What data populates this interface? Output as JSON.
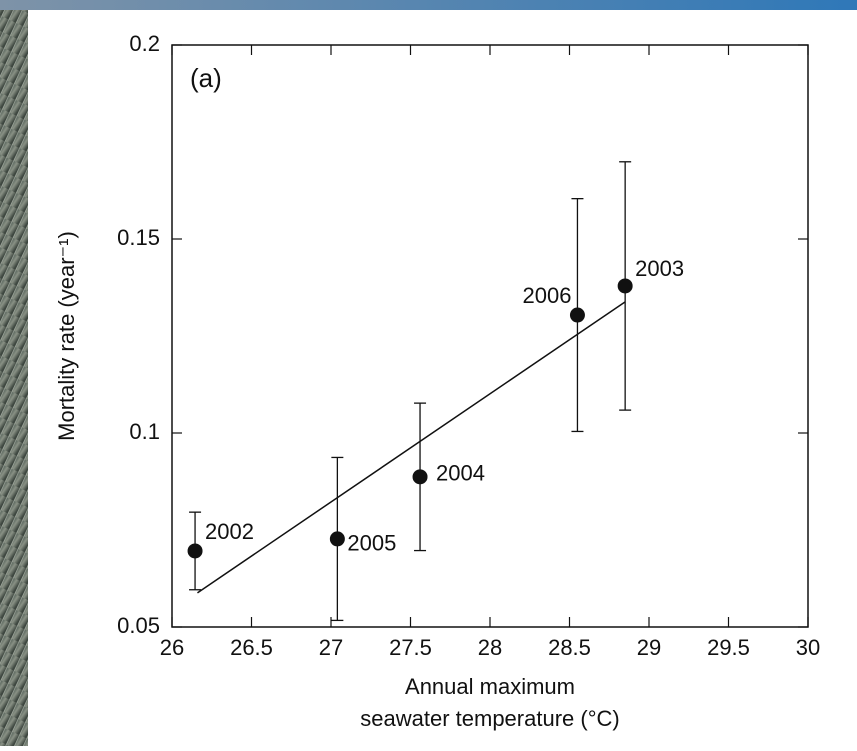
{
  "chart_data": {
    "type": "scatter",
    "annotation": "(a)",
    "xlabel": [
      "Annual maximum",
      "seawater temperature (°C)"
    ],
    "ylabel": "Mortality rate (year⁻¹)",
    "xlim": [
      26,
      30
    ],
    "ylim": [
      0.05,
      0.2
    ],
    "xticks": [
      26,
      26.5,
      27,
      27.5,
      28,
      28.5,
      29,
      29.5,
      30
    ],
    "yticks": [
      0.05,
      0.1,
      0.15,
      0.2
    ],
    "color": "#111111",
    "series": [
      {
        "labels": [
          "2002",
          "2005",
          "2004",
          "2006",
          "2003"
        ],
        "x": [
          26.145,
          27.04,
          27.56,
          28.55,
          28.85
        ],
        "values": [
          0.0696,
          0.0727,
          0.0887,
          0.1304,
          0.1379
        ],
        "errors": [
          0.01,
          0.021,
          0.019,
          0.03,
          0.032
        ]
      }
    ],
    "fit_line": {
      "x": [
        26.16,
        28.85
      ],
      "y": [
        0.0588,
        0.1338
      ]
    }
  }
}
